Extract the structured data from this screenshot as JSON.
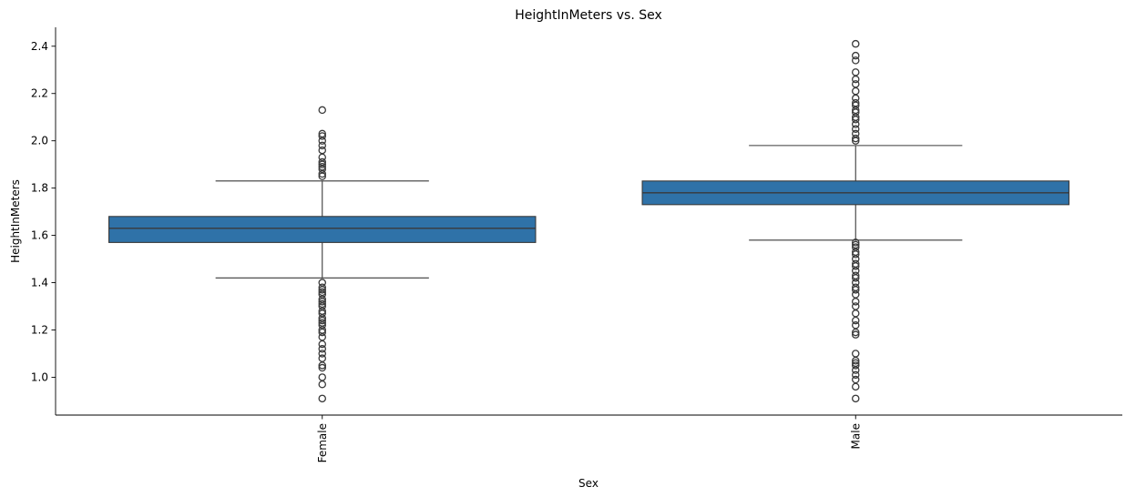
{
  "chart_data": {
    "type": "box",
    "title": "HeightInMeters vs. Sex",
    "xlabel": "Sex",
    "ylabel": "HeightInMeters",
    "ylim": [
      0.84,
      2.48
    ],
    "yticks": [
      1.0,
      1.2,
      1.4,
      1.6,
      1.8,
      2.0,
      2.2,
      2.4
    ],
    "ytick_labels": [
      "1.0",
      "1.2",
      "1.4",
      "1.6",
      "1.8",
      "2.0",
      "2.2",
      "2.4"
    ],
    "categories": [
      "Female",
      "Male"
    ],
    "box_color": "#2f72a8",
    "edge_color": "#3a3a3a",
    "grid": false,
    "boxes": [
      {
        "category": "Female",
        "whisker_low": 1.42,
        "q1": 1.57,
        "median": 1.63,
        "q3": 1.68,
        "whisker_high": 1.83,
        "outliers": [
          0.91,
          0.97,
          1.0,
          1.04,
          1.05,
          1.08,
          1.1,
          1.12,
          1.14,
          1.17,
          1.19,
          1.2,
          1.22,
          1.23,
          1.24,
          1.25,
          1.27,
          1.28,
          1.3,
          1.31,
          1.32,
          1.33,
          1.35,
          1.36,
          1.37,
          1.38,
          1.4,
          1.85,
          1.86,
          1.88,
          1.89,
          1.9,
          1.91,
          1.93,
          1.96,
          1.98,
          2.0,
          2.02,
          2.03,
          2.13
        ]
      },
      {
        "category": "Male",
        "whisker_low": 1.58,
        "q1": 1.73,
        "median": 1.78,
        "q3": 1.83,
        "whisker_high": 1.98,
        "outliers": [
          0.91,
          0.96,
          0.99,
          1.01,
          1.03,
          1.05,
          1.06,
          1.07,
          1.1,
          1.18,
          1.19,
          1.22,
          1.24,
          1.27,
          1.3,
          1.32,
          1.35,
          1.37,
          1.38,
          1.4,
          1.42,
          1.43,
          1.45,
          1.47,
          1.48,
          1.5,
          1.52,
          1.53,
          1.55,
          1.56,
          1.57,
          2.0,
          2.01,
          2.03,
          2.05,
          2.07,
          2.09,
          2.1,
          2.12,
          2.13,
          2.15,
          2.16,
          2.18,
          2.21,
          2.24,
          2.26,
          2.29,
          2.34,
          2.36,
          2.41
        ]
      }
    ]
  }
}
